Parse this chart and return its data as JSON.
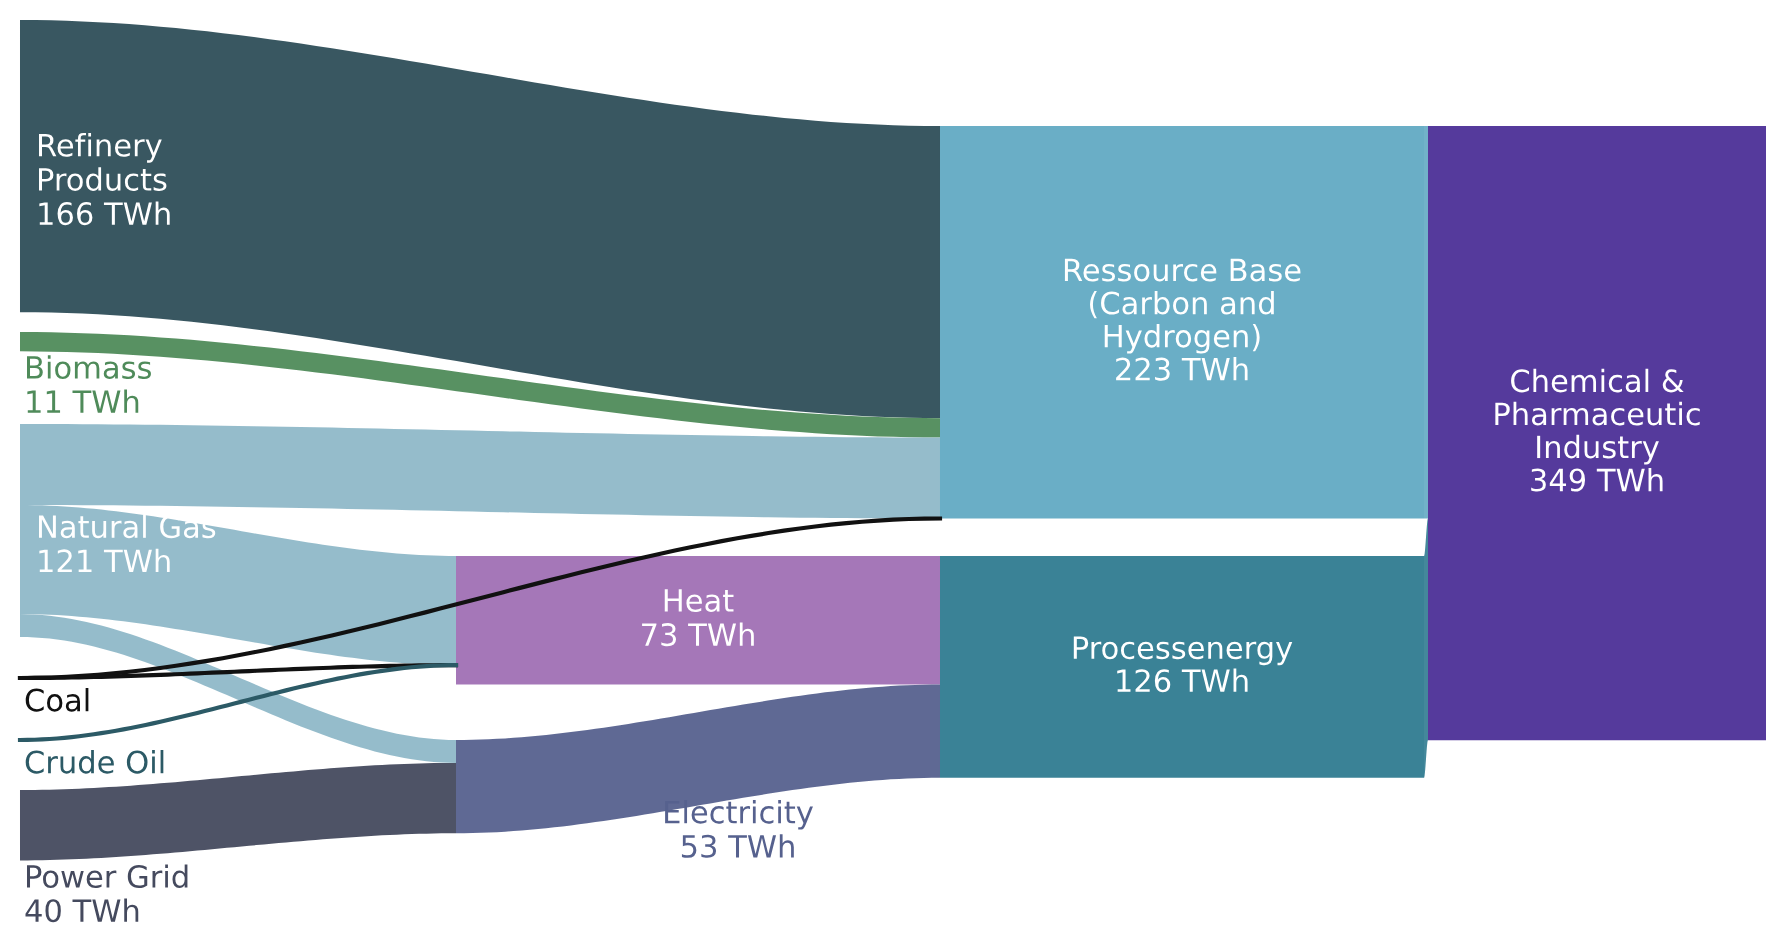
{
  "chart_data": {
    "type": "other",
    "categories": [
      "Refinery\nProducts",
      "Biomass",
      "Natural Gas",
      "Coal",
      "Crude Oil",
      "Power Grid",
      "Heat",
      "Electricity",
      "Ressource Base\n(Carbon and\nHydrogen)",
      "Processenergy",
      "Chemical &\nPharmaceutic\nIndustry"
    ],
    "values": [
      166,
      11,
      121,
      null,
      null,
      40,
      73,
      53,
      223,
      126,
      349
    ],
    "value_labels": [
      "166 TWh",
      "11 TWh",
      "121 TWh",
      null,
      null,
      "40 TWh",
      "73 TWh",
      "53 TWh",
      "223 TWh",
      "126 TWh",
      "349 TWh"
    ],
    "colors": [
      "#2e4e58",
      "#4f8b5a",
      "#8fb8c8",
      "#111111",
      "#2c5a66",
      "#454a5e",
      "#a070b4",
      "#56618e",
      "#6aaec6",
      "#3a8296",
      "#553a9c"
    ]
  }
}
